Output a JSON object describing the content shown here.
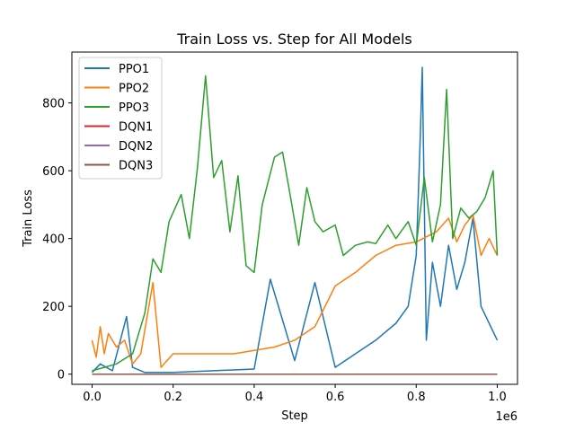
{
  "chart_data": {
    "type": "line",
    "title": "Train Loss vs. Step for All Models",
    "xlabel": "Step",
    "ylabel": "Train Loss",
    "x_offset_text": "1e6",
    "xlim": [
      -0.05,
      1.05
    ],
    "ylim": [
      -30,
      950
    ],
    "x_ticks": [
      0.0,
      0.2,
      0.4,
      0.6,
      0.8,
      1.0
    ],
    "x_tick_labels": [
      "0.0",
      "0.2",
      "0.4",
      "0.6",
      "0.8",
      "1.0"
    ],
    "y_ticks": [
      0,
      200,
      400,
      600,
      800
    ],
    "y_tick_labels": [
      "0",
      "200",
      "400",
      "600",
      "800"
    ],
    "legend_position": "top-left",
    "grid": false,
    "series": [
      {
        "name": "PPO1",
        "color": "#1f77b4",
        "x": [
          0.0,
          0.02,
          0.05,
          0.085,
          0.1,
          0.13,
          0.2,
          0.3,
          0.4,
          0.44,
          0.5,
          0.55,
          0.6,
          0.65,
          0.7,
          0.75,
          0.78,
          0.8,
          0.81,
          0.815,
          0.82,
          0.825,
          0.84,
          0.86,
          0.88,
          0.9,
          0.92,
          0.94,
          0.96,
          0.98,
          1.0
        ],
        "values": [
          5,
          30,
          10,
          170,
          20,
          5,
          5,
          10,
          15,
          280,
          40,
          270,
          20,
          60,
          100,
          150,
          200,
          350,
          700,
          905,
          500,
          100,
          330,
          200,
          380,
          250,
          330,
          460,
          200,
          150,
          100
        ]
      },
      {
        "name": "PPO2",
        "color": "#ff7f0e",
        "x": [
          0.0,
          0.01,
          0.02,
          0.03,
          0.04,
          0.06,
          0.08,
          0.1,
          0.12,
          0.15,
          0.17,
          0.2,
          0.25,
          0.3,
          0.35,
          0.4,
          0.45,
          0.5,
          0.55,
          0.6,
          0.65,
          0.7,
          0.75,
          0.8,
          0.85,
          0.88,
          0.9,
          0.92,
          0.94,
          0.96,
          0.98,
          1.0
        ],
        "values": [
          100,
          50,
          140,
          60,
          120,
          80,
          100,
          30,
          60,
          270,
          20,
          60,
          60,
          60,
          60,
          70,
          80,
          100,
          140,
          260,
          300,
          350,
          380,
          390,
          420,
          460,
          390,
          440,
          470,
          350,
          400,
          350
        ]
      },
      {
        "name": "PPO3",
        "color": "#2ca02c",
        "x": [
          0.0,
          0.03,
          0.06,
          0.1,
          0.13,
          0.15,
          0.17,
          0.19,
          0.22,
          0.24,
          0.26,
          0.28,
          0.3,
          0.32,
          0.34,
          0.36,
          0.38,
          0.4,
          0.42,
          0.45,
          0.47,
          0.49,
          0.51,
          0.53,
          0.55,
          0.57,
          0.6,
          0.62,
          0.65,
          0.68,
          0.7,
          0.73,
          0.75,
          0.78,
          0.8,
          0.82,
          0.84,
          0.86,
          0.875,
          0.89,
          0.91,
          0.93,
          0.95,
          0.97,
          0.99,
          1.0
        ],
        "values": [
          10,
          20,
          30,
          60,
          180,
          340,
          300,
          450,
          530,
          400,
          610,
          880,
          580,
          630,
          420,
          585,
          320,
          300,
          500,
          640,
          655,
          520,
          380,
          550,
          450,
          420,
          440,
          350,
          380,
          390,
          385,
          440,
          400,
          450,
          380,
          580,
          390,
          500,
          840,
          400,
          490,
          460,
          480,
          520,
          600,
          350
        ]
      },
      {
        "name": "DQN1",
        "color": "#d62728",
        "x": [
          0.0,
          1.0
        ],
        "values": [
          0,
          0
        ]
      },
      {
        "name": "DQN2",
        "color": "#9467bd",
        "x": [
          0.0,
          1.0
        ],
        "values": [
          0,
          0
        ]
      },
      {
        "name": "DQN3",
        "color": "#8c564b",
        "x": [
          0.0,
          1.0
        ],
        "values": [
          0,
          0
        ]
      }
    ]
  }
}
